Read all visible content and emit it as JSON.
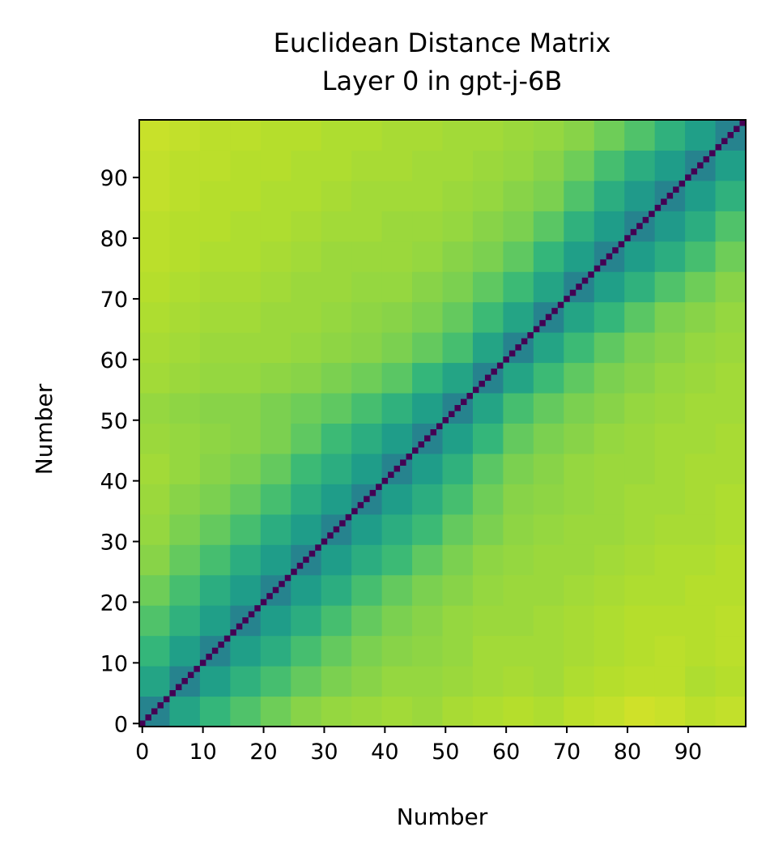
{
  "chart_data": {
    "type": "heatmap",
    "title": "Euclidean Distance Matrix",
    "subtitle": "Layer 0 in gpt-j-6B",
    "xlabel": "Number",
    "ylabel": "Number",
    "colormap": "viridis",
    "vlim": [
      0,
      1
    ],
    "xlim": [
      -0.5,
      99.5
    ],
    "ylim": [
      -0.5,
      99.5
    ],
    "xticks": [
      0,
      10,
      20,
      30,
      40,
      50,
      60,
      70,
      80,
      90
    ],
    "yticks": [
      0,
      10,
      20,
      30,
      40,
      50,
      60,
      70,
      80,
      90
    ],
    "xbins": [
      -0.5,
      4.5,
      9.5,
      14.5,
      19.5,
      24.5,
      29.5,
      34.5,
      39.5,
      44.5,
      49.5,
      54.5,
      59.5,
      64.5,
      69.5,
      74.5,
      79.5,
      84.5,
      89.5,
      94.5,
      99.5
    ],
    "ybins": [
      -0.5,
      4.5,
      9.5,
      14.5,
      19.5,
      24.5,
      29.5,
      34.5,
      39.5,
      44.5,
      49.5,
      54.5,
      59.5,
      64.5,
      69.5,
      74.5,
      79.5,
      84.5,
      89.5,
      94.5,
      99.5
    ],
    "matrix": [
      [
        0.45,
        0.58,
        0.66,
        0.72,
        0.78,
        0.82,
        0.84,
        0.85,
        0.86,
        0.85,
        0.87,
        0.88,
        0.89,
        0.88,
        0.9,
        0.91,
        0.93,
        0.92,
        0.9,
        0.91
      ],
      [
        0.58,
        0.45,
        0.56,
        0.64,
        0.7,
        0.76,
        0.8,
        0.82,
        0.84,
        0.84,
        0.85,
        0.86,
        0.87,
        0.86,
        0.88,
        0.89,
        0.9,
        0.9,
        0.88,
        0.89
      ],
      [
        0.66,
        0.56,
        0.45,
        0.56,
        0.62,
        0.7,
        0.76,
        0.8,
        0.82,
        0.83,
        0.84,
        0.86,
        0.86,
        0.86,
        0.87,
        0.88,
        0.89,
        0.9,
        0.89,
        0.9
      ],
      [
        0.72,
        0.64,
        0.56,
        0.45,
        0.55,
        0.62,
        0.7,
        0.76,
        0.8,
        0.82,
        0.84,
        0.85,
        0.85,
        0.86,
        0.87,
        0.88,
        0.89,
        0.89,
        0.89,
        0.9
      ],
      [
        0.78,
        0.7,
        0.62,
        0.55,
        0.45,
        0.55,
        0.62,
        0.7,
        0.76,
        0.8,
        0.82,
        0.84,
        0.85,
        0.85,
        0.86,
        0.87,
        0.88,
        0.88,
        0.89,
        0.89
      ],
      [
        0.82,
        0.76,
        0.7,
        0.62,
        0.55,
        0.45,
        0.55,
        0.62,
        0.68,
        0.75,
        0.8,
        0.83,
        0.84,
        0.85,
        0.85,
        0.86,
        0.87,
        0.88,
        0.88,
        0.89
      ],
      [
        0.84,
        0.8,
        0.76,
        0.7,
        0.62,
        0.55,
        0.45,
        0.55,
        0.62,
        0.68,
        0.76,
        0.8,
        0.83,
        0.84,
        0.85,
        0.85,
        0.86,
        0.87,
        0.87,
        0.88
      ],
      [
        0.85,
        0.82,
        0.8,
        0.76,
        0.7,
        0.62,
        0.55,
        0.45,
        0.55,
        0.62,
        0.7,
        0.78,
        0.82,
        0.83,
        0.84,
        0.85,
        0.86,
        0.86,
        0.87,
        0.88
      ],
      [
        0.86,
        0.84,
        0.82,
        0.8,
        0.76,
        0.68,
        0.62,
        0.55,
        0.45,
        0.55,
        0.64,
        0.74,
        0.8,
        0.82,
        0.84,
        0.85,
        0.85,
        0.86,
        0.87,
        0.87
      ],
      [
        0.85,
        0.84,
        0.83,
        0.82,
        0.8,
        0.75,
        0.68,
        0.62,
        0.55,
        0.45,
        0.56,
        0.66,
        0.76,
        0.8,
        0.82,
        0.84,
        0.85,
        0.86,
        0.86,
        0.87
      ],
      [
        0.84,
        0.83,
        0.82,
        0.82,
        0.8,
        0.78,
        0.75,
        0.7,
        0.64,
        0.56,
        0.45,
        0.58,
        0.7,
        0.76,
        0.8,
        0.82,
        0.84,
        0.85,
        0.86,
        0.86
      ],
      [
        0.86,
        0.85,
        0.84,
        0.84,
        0.83,
        0.82,
        0.8,
        0.78,
        0.74,
        0.66,
        0.58,
        0.45,
        0.58,
        0.68,
        0.75,
        0.8,
        0.82,
        0.84,
        0.85,
        0.86
      ],
      [
        0.87,
        0.86,
        0.85,
        0.85,
        0.85,
        0.84,
        0.83,
        0.82,
        0.8,
        0.76,
        0.7,
        0.58,
        0.45,
        0.58,
        0.68,
        0.75,
        0.8,
        0.82,
        0.84,
        0.85
      ],
      [
        0.88,
        0.87,
        0.86,
        0.86,
        0.85,
        0.85,
        0.84,
        0.83,
        0.82,
        0.8,
        0.76,
        0.68,
        0.58,
        0.45,
        0.58,
        0.66,
        0.74,
        0.8,
        0.82,
        0.84
      ],
      [
        0.89,
        0.88,
        0.87,
        0.87,
        0.86,
        0.85,
        0.85,
        0.84,
        0.84,
        0.82,
        0.8,
        0.75,
        0.68,
        0.58,
        0.45,
        0.56,
        0.64,
        0.72,
        0.78,
        0.82
      ],
      [
        0.9,
        0.89,
        0.88,
        0.88,
        0.87,
        0.86,
        0.85,
        0.85,
        0.85,
        0.84,
        0.82,
        0.8,
        0.75,
        0.66,
        0.56,
        0.45,
        0.55,
        0.62,
        0.7,
        0.78
      ],
      [
        0.9,
        0.89,
        0.89,
        0.88,
        0.88,
        0.87,
        0.86,
        0.86,
        0.85,
        0.85,
        0.84,
        0.82,
        0.8,
        0.74,
        0.64,
        0.55,
        0.45,
        0.54,
        0.62,
        0.72
      ],
      [
        0.91,
        0.9,
        0.89,
        0.89,
        0.88,
        0.88,
        0.87,
        0.86,
        0.86,
        0.86,
        0.85,
        0.84,
        0.82,
        0.8,
        0.72,
        0.62,
        0.54,
        0.45,
        0.55,
        0.64
      ],
      [
        0.91,
        0.9,
        0.9,
        0.89,
        0.89,
        0.88,
        0.88,
        0.87,
        0.87,
        0.86,
        0.86,
        0.85,
        0.84,
        0.82,
        0.78,
        0.7,
        0.62,
        0.55,
        0.45,
        0.56
      ],
      [
        0.92,
        0.91,
        0.9,
        0.9,
        0.89,
        0.89,
        0.88,
        0.88,
        0.87,
        0.87,
        0.86,
        0.86,
        0.85,
        0.84,
        0.82,
        0.78,
        0.72,
        0.64,
        0.56,
        0.45
      ]
    ],
    "diagonal": [
      0,
      0,
      0,
      0,
      0,
      0,
      0,
      0,
      0,
      0,
      0,
      0,
      0,
      0,
      0,
      0,
      0,
      0,
      0,
      0,
      0,
      0,
      0,
      0,
      0,
      0,
      0,
      0,
      0,
      0,
      0,
      0,
      0,
      0,
      0,
      0,
      0,
      0,
      0,
      0,
      0,
      0,
      0,
      0,
      0,
      0,
      0,
      0,
      0,
      0,
      0,
      0,
      0,
      0,
      0,
      0,
      0,
      0,
      0,
      0,
      0,
      0,
      0,
      0,
      0,
      0,
      0,
      0,
      0,
      0,
      0,
      0,
      0,
      0,
      0,
      0,
      0,
      0,
      0,
      0,
      0,
      0,
      0,
      0,
      0,
      0,
      0,
      0,
      0,
      0,
      0,
      0,
      0,
      0,
      0,
      0,
      0,
      0,
      0,
      0
    ]
  }
}
